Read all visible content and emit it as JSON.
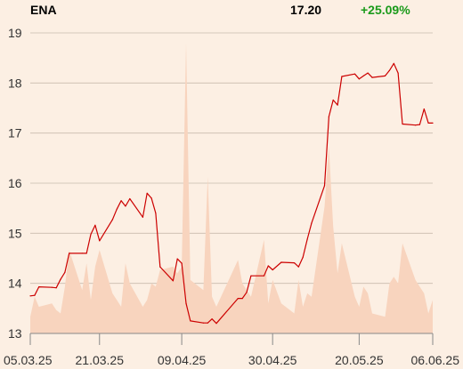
{
  "header": {
    "ticker": "ENA",
    "last": "17.20",
    "change": "+25.09%",
    "change_color": "#1a9a1a"
  },
  "chart_data": {
    "type": "line",
    "title": "",
    "xlabel": "",
    "ylabel": "",
    "x_range": [
      "05.03.25",
      "06.06.25"
    ],
    "ylim": [
      13,
      19
    ],
    "y_ticks": [
      13,
      14,
      15,
      16,
      17,
      18,
      19
    ],
    "x_ticks": [
      "05.03.25",
      "21.03.25",
      "09.04.25",
      "30.04.25",
      "20.05.25",
      "06.06.25"
    ],
    "grid": true,
    "legend": "none",
    "colors": {
      "line": "#cc0000",
      "volume": "#f8d4be",
      "grid": "#c9bcae",
      "background": "#fcefe3"
    },
    "series": [
      {
        "x": [
          "05.03.25",
          "06.03.25",
          "07.03.25",
          "10.03.25",
          "11.03.25",
          "12.03.25",
          "13.03.25",
          "14.03.25",
          "17.03.25",
          "18.03.25",
          "19.03.25",
          "20.03.25",
          "21.03.25",
          "24.03.25",
          "25.03.25",
          "26.03.25",
          "27.03.25",
          "28.03.25",
          "31.03.25",
          "01.04.25",
          "02.04.25",
          "03.04.25",
          "04.04.25",
          "07.04.25",
          "08.04.25",
          "09.04.25",
          "10.04.25",
          "11.04.25",
          "14.04.25",
          "15.04.25",
          "16.04.25",
          "17.04.25",
          "22.04.25",
          "23.04.25",
          "24.04.25",
          "25.04.25",
          "28.04.25",
          "29.04.25",
          "30.04.25",
          "02.05.25",
          "05.05.25",
          "06.05.25",
          "07.05.25",
          "08.05.25",
          "09.05.25",
          "12.05.25",
          "13.05.25",
          "14.05.25",
          "15.05.25",
          "16.05.25",
          "19.05.25",
          "20.05.25",
          "21.05.25",
          "22.05.25",
          "23.05.25",
          "26.05.25",
          "27.05.25",
          "28.05.25",
          "29.05.25",
          "30.05.25",
          "02.06.25",
          "03.06.25",
          "04.06.25",
          "05.06.25",
          "06.06.25"
        ],
        "values": [
          13.75,
          13.76,
          13.93,
          13.92,
          13.91,
          14.08,
          14.22,
          14.6,
          14.6,
          14.6,
          14.98,
          15.16,
          14.85,
          15.27,
          15.48,
          15.65,
          15.54,
          15.69,
          15.32,
          15.8,
          15.7,
          15.4,
          14.33,
          14.05,
          14.49,
          14.4,
          13.6,
          13.25,
          13.21,
          13.21,
          13.29,
          13.2,
          13.7,
          13.7,
          13.82,
          14.15,
          14.15,
          14.35,
          14.27,
          14.42,
          14.41,
          14.33,
          14.52,
          14.88,
          15.2,
          15.95,
          17.33,
          17.66,
          17.56,
          18.13,
          18.18,
          18.08,
          18.14,
          18.2,
          18.11,
          18.14,
          18.25,
          18.39,
          18.2,
          17.18,
          17.16,
          17.17,
          17.48,
          17.2,
          17.2
        ]
      }
    ],
    "volume": [
      0.5,
      1.1,
      0.8,
      0.9,
      0.7,
      0.6,
      1.4,
      2.5,
      1.3,
      2.1,
      1.0,
      2.0,
      2.5,
      1.2,
      1.0,
      0.8,
      2.1,
      1.5,
      0.8,
      1.0,
      1.5,
      1.4,
      1.9,
      2.0,
      1.8,
      2.0,
      8.7,
      1.6,
      1.3,
      4.7,
      1.1,
      0.8,
      2.2,
      1.5,
      1.3,
      1.1,
      2.8,
      0.9,
      1.6,
      0.9,
      0.6,
      1.6,
      0.8,
      1.2,
      1.1,
      3.8,
      5.6,
      3.2,
      1.8,
      2.7,
      1.1,
      0.8,
      1.4,
      1.2,
      0.6,
      0.5,
      1.5,
      1.7,
      1.5,
      2.7,
      1.6,
      1.4,
      1.2,
      0.6,
      1.0
    ]
  }
}
